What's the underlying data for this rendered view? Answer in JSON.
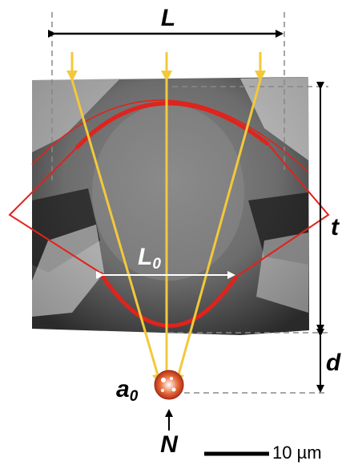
{
  "labels": {
    "L": "L",
    "L0": {
      "base": "L",
      "sub": "0"
    },
    "t": "t",
    "d": "d",
    "a0": {
      "base": "a",
      "sub": "0"
    },
    "N": "N",
    "scale_bar": "10 µm"
  }
}
